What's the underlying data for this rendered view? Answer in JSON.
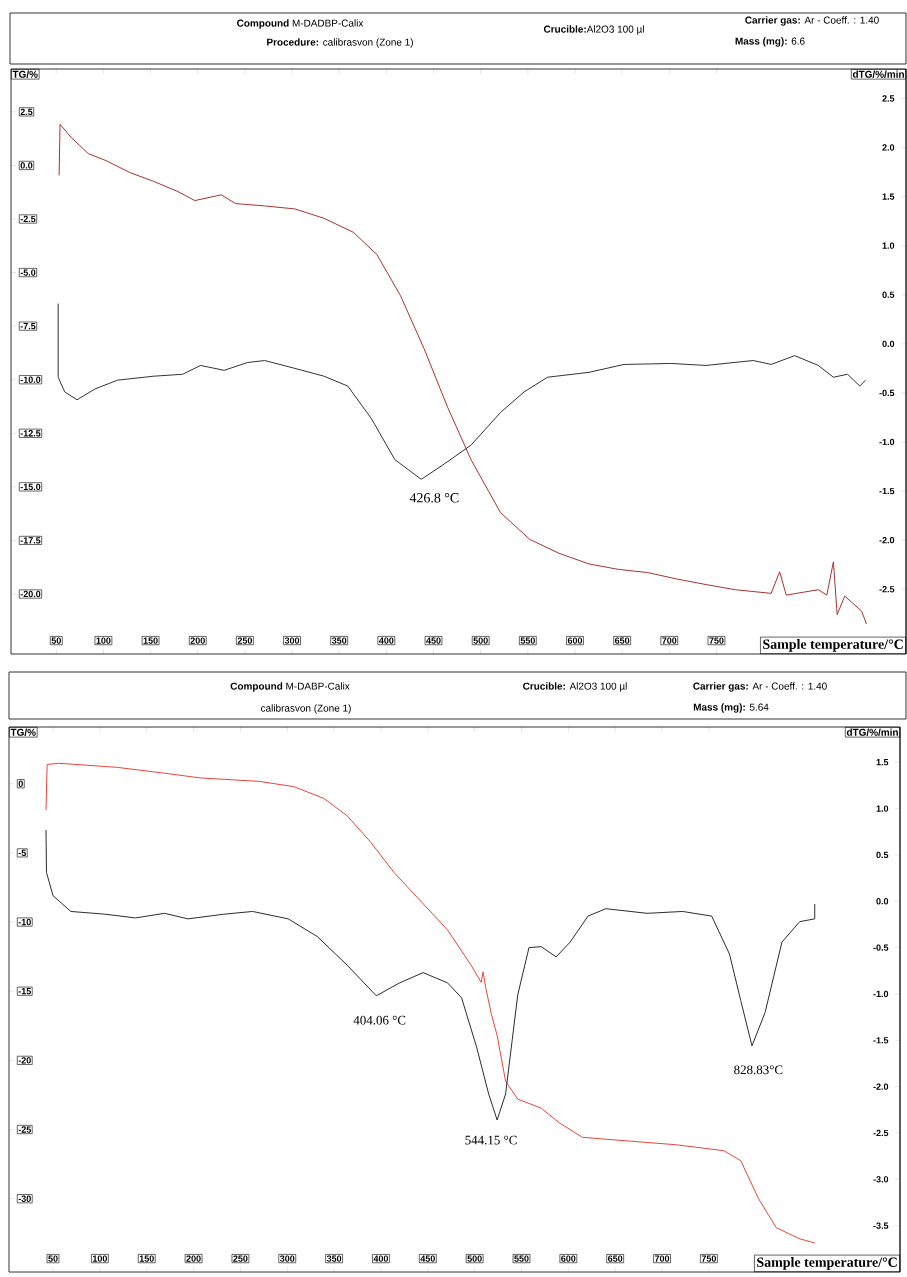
{
  "chart_data": [
    {
      "type": "line",
      "xlabel": "Sample temperature/°C",
      "ylabel": "TG/%",
      "y2label": "dTG/%/min",
      "annotations": [
        "**Compound** M-DADBP-Calix",
        "**Procedure:** calibrasvon (Zone 1)",
        "**Crucible:**Al2O3 100 µl",
        "**Carrier gas:** Ar - Coeff. : 1.40",
        "**Mass (mg):** 6.6",
        "426.8 °C"
      ],
      "xlim": [
        2,
        951
      ],
      "xticks": [
        50,
        100,
        150,
        200,
        250,
        300,
        350,
        400,
        450,
        500,
        550,
        600,
        650,
        700,
        750
      ],
      "ylim": [
        -22.8,
        4.5
      ],
      "yticks": [
        {
          "value": 2.5,
          "label": "2.5"
        },
        {
          "value": 0,
          "label": "0.0"
        },
        {
          "value": -2.5,
          "label": "-2.5"
        },
        {
          "value": -5,
          "label": "-5.0"
        },
        {
          "value": -7.5,
          "label": "-7.5"
        },
        {
          "value": -10,
          "label": "-10.0"
        },
        {
          "value": -12.5,
          "label": "-12.5"
        },
        {
          "value": -15,
          "label": "-15.0"
        },
        {
          "value": -17.5,
          "label": "-17.5"
        },
        {
          "value": -20,
          "label": "-20.0"
        }
      ],
      "y2lim": [
        -3.16,
        2.8
      ],
      "y2ticks": [
        {
          "value": 2.5,
          "label": "2.5"
        },
        {
          "value": 2,
          "label": "2.0"
        },
        {
          "value": 1.5,
          "label": "1.5"
        },
        {
          "value": 1,
          "label": "1.0"
        },
        {
          "value": 0.5,
          "label": "0.5"
        },
        {
          "value": 0,
          "label": "0.0"
        },
        {
          "value": -0.5,
          "label": "-0.5"
        },
        {
          "value": -1,
          "label": "-1.0"
        },
        {
          "value": -1.5,
          "label": "-1.5"
        },
        {
          "value": -2,
          "label": "-2.0"
        },
        {
          "value": -2.5,
          "label": "-2.5"
        }
      ],
      "series": [
        {
          "color": "#a83232",
          "x": [
            53,
            54,
            66,
            84,
            103,
            128,
            153,
            178,
            197,
            225,
            240,
            271,
            303,
            334,
            365,
            390,
            415,
            440,
            465,
            490,
            521,
            552,
            583,
            615,
            646,
            677,
            708,
            739,
            770,
            808,
            817,
            824,
            858,
            867,
            874,
            878,
            886,
            904,
            909
          ],
          "values": [
            -0.47,
            1.92,
            1.3,
            0.55,
            0.22,
            -0.33,
            -0.74,
            -1.2,
            -1.64,
            -1.37,
            -1.78,
            -1.89,
            -2.03,
            -2.47,
            -3.12,
            -4.16,
            -6.08,
            -8.55,
            -11.29,
            -13.75,
            -16.2,
            -17.45,
            -18.1,
            -18.6,
            -18.85,
            -19.0,
            -19.3,
            -19.56,
            -19.8,
            -19.97,
            -18.96,
            -20.05,
            -19.8,
            -20.05,
            -18.5,
            -20.96,
            -20.1,
            -20.8,
            -21.4
          ]
        },
        {
          "color": "#333333",
          "axis": "y2",
          "x": [
            52,
            52,
            59,
            72,
            91,
            115,
            153,
            184,
            203,
            228,
            253,
            271,
            303,
            334,
            359,
            384,
            409,
            437,
            459,
            490,
            521,
            546,
            571,
            615,
            652,
            702,
            739,
            789,
            808,
            833,
            858,
            874,
            889,
            902,
            908
          ],
          "values": [
            0.41,
            -0.34,
            -0.49,
            -0.57,
            -0.46,
            -0.37,
            -0.33,
            -0.31,
            -0.22,
            -0.27,
            -0.19,
            -0.17,
            -0.25,
            -0.33,
            -0.43,
            -0.76,
            -1.18,
            -1.38,
            -1.24,
            -1.03,
            -0.7,
            -0.49,
            -0.34,
            -0.29,
            -0.21,
            -0.2,
            -0.22,
            -0.17,
            -0.21,
            -0.12,
            -0.22,
            -0.34,
            -0.31,
            -0.43,
            -0.37
          ]
        }
      ]
    },
    {
      "type": "line",
      "xlabel": "Sample temperature/°C",
      "ylabel": "TG/%",
      "y2label": "dTG/%/min",
      "annotations": [
        "**Compound** M-DABP-Calix",
        "calibrasvon (Zone 1)",
        "**Crucible:** Al2O3 100 µl",
        "**Carrier gas:** Ar - Coeff. : 1.40",
        "**Mass (mg):** 5.64",
        "404.06 °C",
        "544.15 °C",
        "828.83°C"
      ],
      "xlim": [
        3,
        954
      ],
      "xticks": [
        50,
        100,
        150,
        200,
        250,
        300,
        350,
        400,
        450,
        500,
        550,
        600,
        650,
        700,
        750
      ],
      "ylim": [
        -35.3,
        4.1
      ],
      "yticks": [
        0,
        -5,
        -10,
        -15,
        -20,
        -25,
        -30
      ],
      "y2lim": [
        -4.0,
        1.88
      ],
      "y2ticks": [
        1.5,
        {
          "value": 1,
          "label": "1.0"
        },
        0.5,
        {
          "value": 0,
          "label": "0.0"
        },
        -0.5,
        {
          "value": -1,
          "label": "-1.0"
        },
        -1.5,
        {
          "value": -2,
          "label": "-2.0"
        },
        -2.5,
        {
          "value": -3,
          "label": "-3.0"
        },
        -3.5
      ],
      "series": [
        {
          "color": "#e8453c",
          "x": [
            42.5,
            43.7,
            56,
            119,
            169,
            207,
            270,
            307,
            339,
            364,
            389,
            414,
            439,
            471,
            496,
            507,
            509,
            512,
            518,
            524,
            533,
            546,
            571,
            590,
            615,
            653,
            715,
            766,
            784,
            803,
            822,
            847,
            863
          ],
          "values": [
            -1.9,
            1.39,
            1.48,
            1.18,
            0.76,
            0.42,
            0.17,
            -0.21,
            -1.06,
            -2.32,
            -4.22,
            -6.42,
            -8.24,
            -10.56,
            -13.1,
            -14.36,
            -13.6,
            -14.8,
            -16.7,
            -18.2,
            -21.5,
            -22.8,
            -23.45,
            -24.5,
            -25.56,
            -25.77,
            -26.1,
            -26.53,
            -27.25,
            -30.0,
            -32.1,
            -32.9,
            -33.2
          ]
        },
        {
          "color": "#2b2b2b",
          "axis": "y2",
          "x": [
            42.5,
            43,
            50,
            69,
            106,
            138,
            169,
            194,
            232,
            263,
            301,
            332,
            364,
            395,
            420,
            445,
            471,
            486,
            502,
            515,
            524,
            533,
            546,
            558,
            571,
            587,
            602,
            621,
            640,
            684,
            722,
            753,
            772,
            784,
            796,
            810,
            828,
            847,
            863,
            863
          ],
          "values": [
            0.77,
            0.31,
            0.06,
            -0.11,
            -0.14,
            -0.18,
            -0.13,
            -0.19,
            -0.14,
            -0.11,
            -0.19,
            -0.38,
            -0.69,
            -1.02,
            -0.88,
            -0.77,
            -0.88,
            -1.04,
            -1.57,
            -2.08,
            -2.36,
            -2.08,
            -1.01,
            -0.5,
            -0.49,
            -0.6,
            -0.44,
            -0.16,
            -0.08,
            -0.13,
            -0.11,
            -0.16,
            -0.57,
            -1.07,
            -1.56,
            -1.2,
            -0.44,
            -0.22,
            -0.19,
            -0.03
          ]
        }
      ]
    }
  ]
}
